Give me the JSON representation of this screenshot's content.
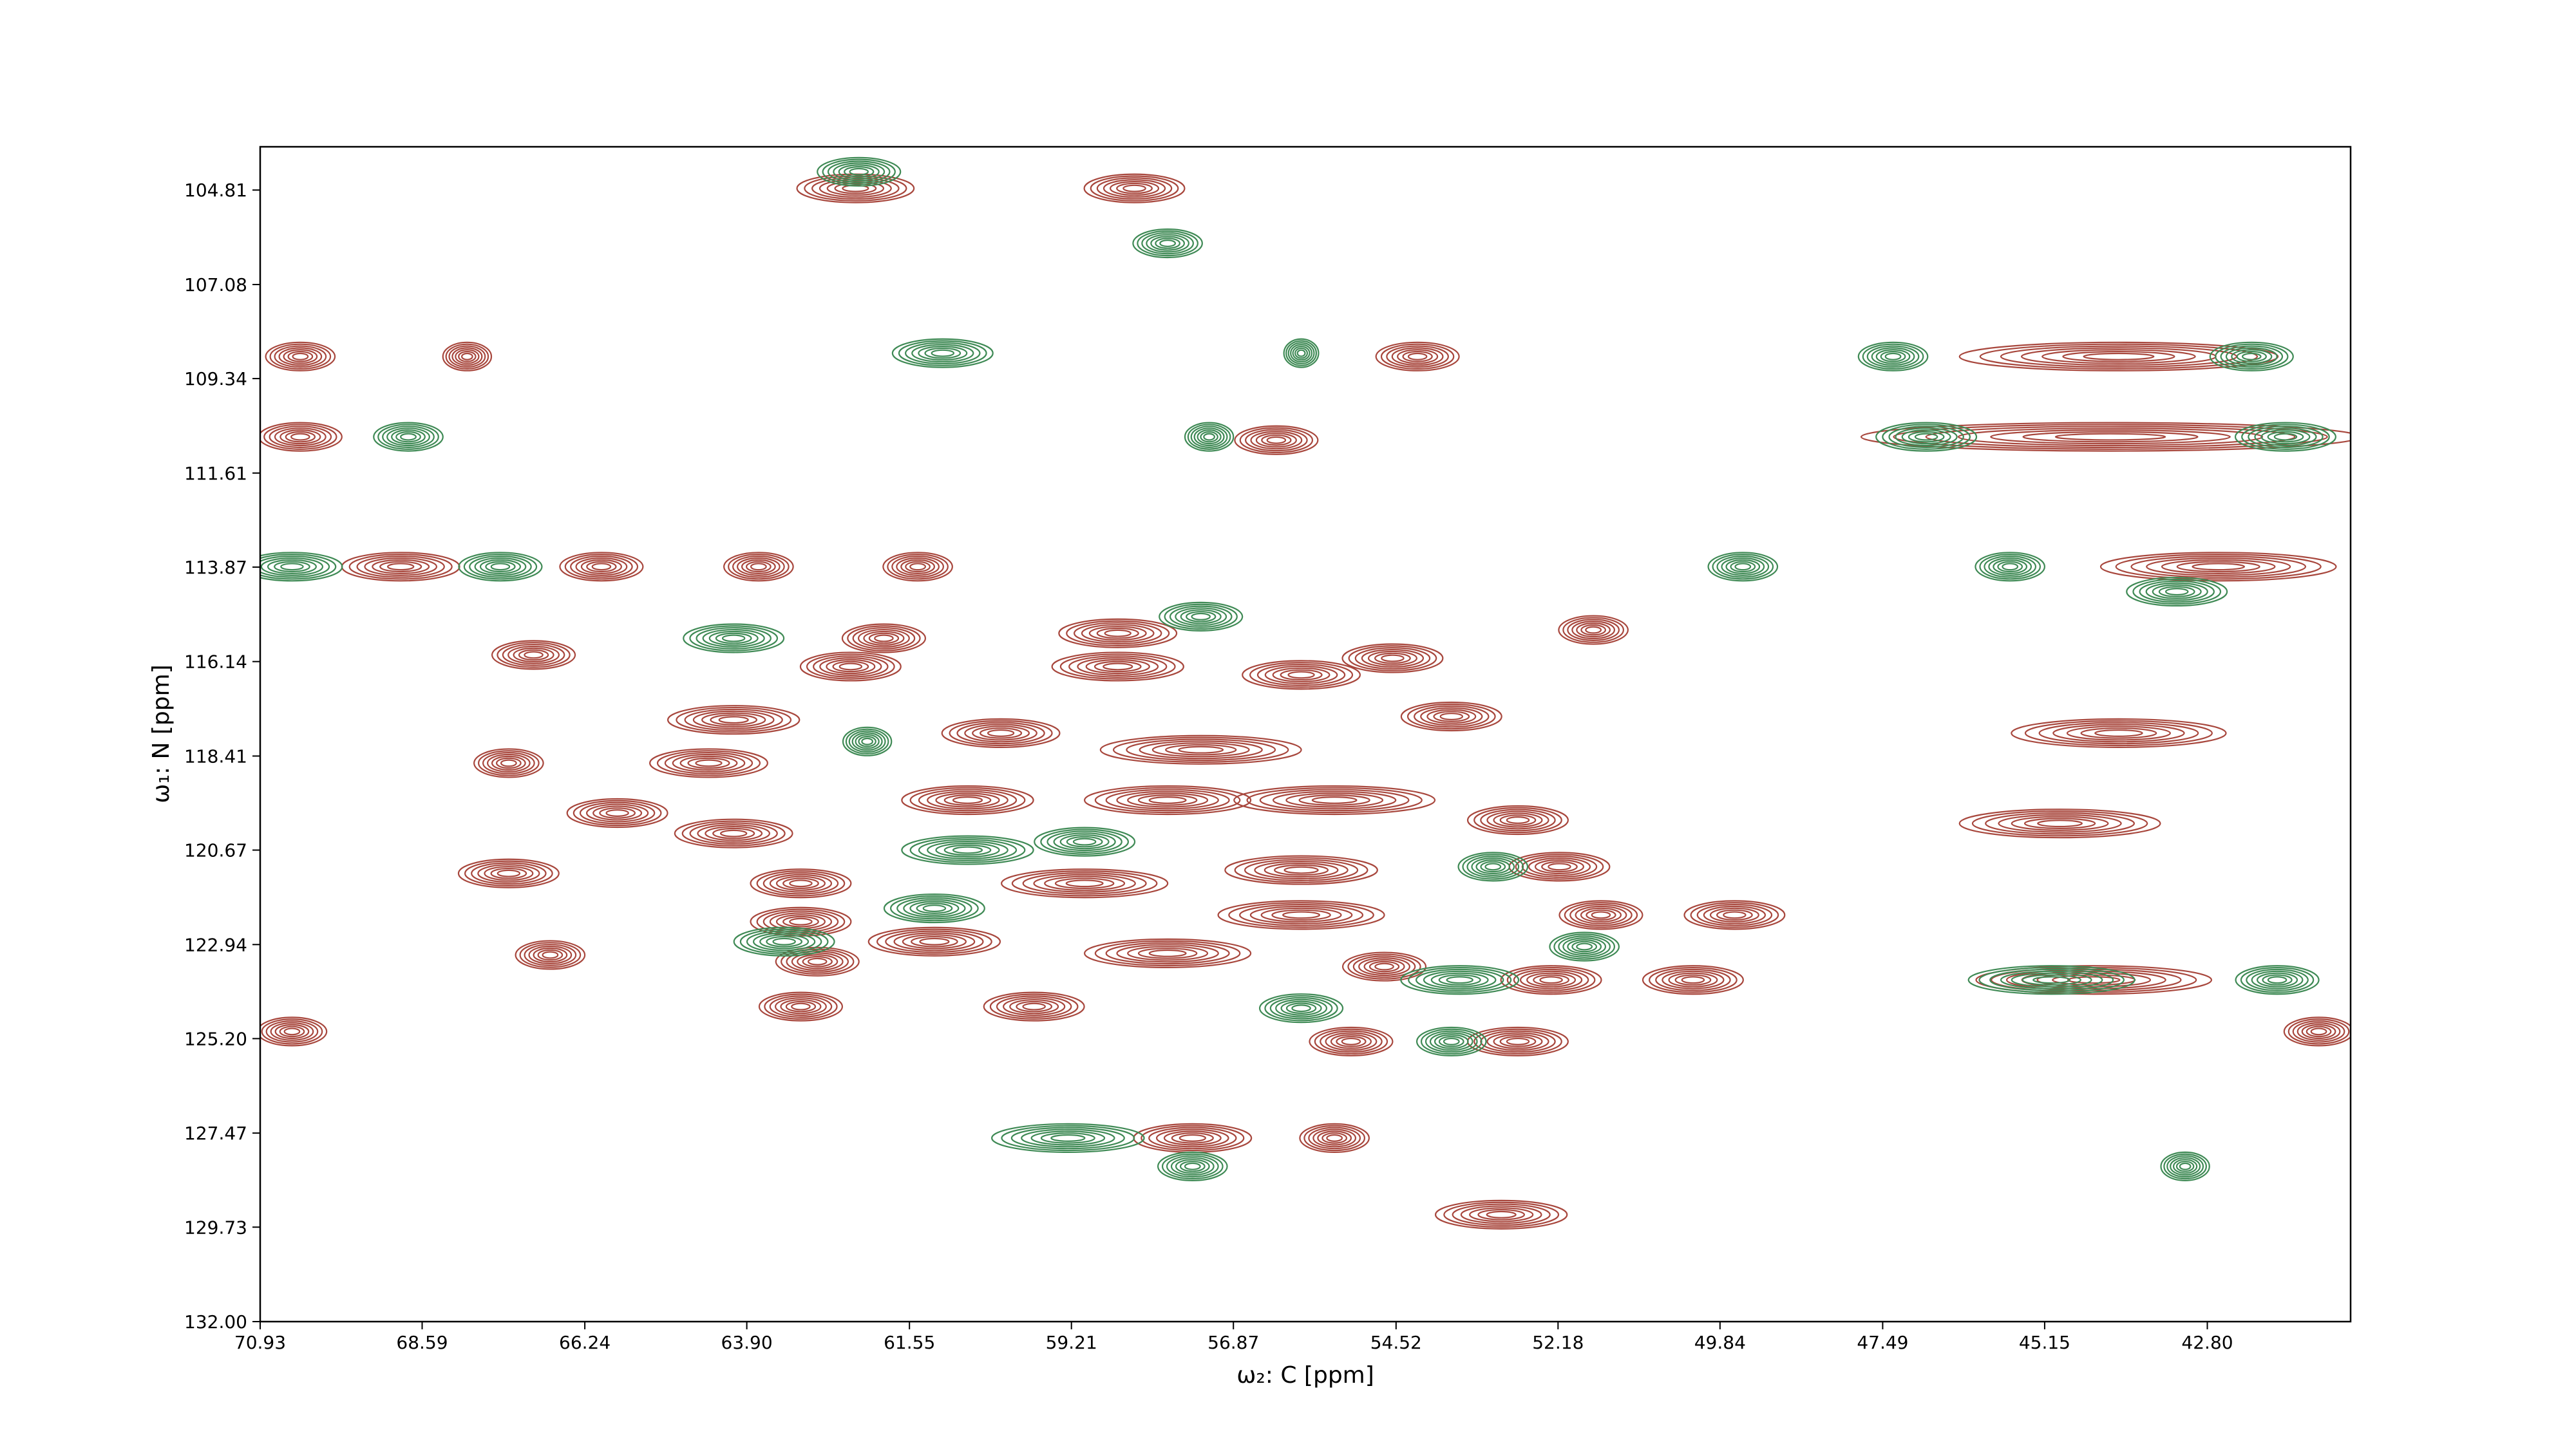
{
  "chart_data": {
    "type": "contour",
    "xlabel": "ω₂: C [ppm]",
    "ylabel": "ω₁: N [ppm]",
    "xlim": [
      70.93,
      40.73
    ],
    "ylim": [
      132,
      103.77
    ],
    "xticks": [
      70.93,
      68.59,
      66.24,
      {
        "value": 63.9,
        "label": "63.90"
      },
      61.55,
      59.21,
      56.87,
      54.52,
      52.18,
      49.84,
      47.49,
      45.15,
      {
        "value": 42.8,
        "label": "42.80"
      }
    ],
    "yticks": [
      104.81,
      107.08,
      109.34,
      111.61,
      113.87,
      116.14,
      118.41,
      120.67,
      122.94,
      {
        "value": 125.2,
        "label": "125.20"
      },
      127.47,
      129.73,
      {
        "value": 132,
        "label": "132.00"
      }
    ],
    "series": [
      {
        "color": "#a8473d",
        "x": [
          62.33,
          58.3,
          54.21,
          44.08,
          70.35,
          56.25,
          44.2,
          42.64,
          68.9,
          66.0,
          63.73,
          61.43,
          66.98,
          61.92,
          62.4,
          58.54,
          58.54,
          55.89,
          54.57,
          51.67,
          64.09,
          60.23,
          67.34,
          64.45,
          57.34,
          53.72,
          44.08,
          65.77,
          64.09,
          60.71,
          57.82,
          55.41,
          52.76,
          44.93,
          67.34,
          63.12,
          59.02,
          55.89,
          52.16,
          49.63,
          51.56,
          55.89,
          63.12,
          61.19,
          57.82,
          54.69,
          52.28,
          50.23,
          44.44,
          62.88,
          63.12,
          59.75,
          55.17,
          52.76,
          70.47,
          41.19,
          57.46,
          55.41,
          53.0,
          66.74,
          67.94,
          70.35
        ],
        "y": [
          104.77,
          104.77,
          108.81,
          108.81,
          110.74,
          110.82,
          110.74,
          113.86,
          113.86,
          113.86,
          113.86,
          113.86,
          115.98,
          115.58,
          116.26,
          115.46,
          116.26,
          116.46,
          116.06,
          115.38,
          117.54,
          117.86,
          118.58,
          118.58,
          118.26,
          117.46,
          117.86,
          119.78,
          120.27,
          119.47,
          119.47,
          119.47,
          119.95,
          120.03,
          121.23,
          121.47,
          121.47,
          121.15,
          121.07,
          122.23,
          122.23,
          122.23,
          122.39,
          122.87,
          123.15,
          123.47,
          123.79,
          123.79,
          123.79,
          123.35,
          124.43,
          124.43,
          125.27,
          125.27,
          125.03,
          125.03,
          127.59,
          127.59,
          129.43,
          123.19,
          108.81,
          108.81
        ],
        "width": [
          1.69,
          1.45,
          1.2,
          4.6,
          1.2,
          1.2,
          7.2,
          3.4,
          1.7,
          1.2,
          1.0,
          1.0,
          1.2,
          1.2,
          1.45,
          1.7,
          1.9,
          1.7,
          1.45,
          1.0,
          1.9,
          1.7,
          1.0,
          1.7,
          2.9,
          1.45,
          3.1,
          1.45,
          1.7,
          1.9,
          2.4,
          2.9,
          1.45,
          2.9,
          1.45,
          1.45,
          2.4,
          2.2,
          1.45,
          1.45,
          1.2,
          2.4,
          1.45,
          1.9,
          2.4,
          1.2,
          1.45,
          1.45,
          3.4,
          1.2,
          1.2,
          1.45,
          1.2,
          1.45,
          1.0,
          1.0,
          1.7,
          1.0,
          1.9,
          1.0,
          0.7,
          1.0
        ]
      },
      {
        "color": "#3f8a55",
        "x": [
          62.28,
          57.82,
          61.07,
          42.16,
          47.34,
          55.89,
          68.79,
          46.86,
          41.67,
          57.22,
          70.47,
          67.46,
          49.51,
          45.65,
          43.24,
          64.09,
          57.34,
          62.16,
          60.71,
          59.02,
          53.12,
          63.36,
          61.19,
          53.6,
          51.8,
          45.05,
          41.79,
          59.26,
          57.46,
          43.12,
          55.89,
          53.72
        ],
        "y": [
          104.37,
          106.09,
          108.73,
          108.81,
          108.81,
          108.73,
          110.74,
          110.74,
          110.74,
          110.74,
          113.86,
          113.86,
          113.86,
          113.86,
          114.46,
          115.58,
          115.06,
          118.06,
          120.67,
          120.47,
          121.07,
          122.87,
          122.07,
          123.79,
          122.99,
          123.79,
          123.79,
          127.59,
          128.27,
          128.27,
          124.47,
          125.27
        ],
        "width": [
          1.2,
          1.0,
          1.45,
          1.2,
          1.0,
          0.5,
          1.0,
          1.45,
          1.45,
          0.7,
          1.45,
          1.2,
          1.0,
          1.0,
          1.45,
          1.45,
          1.2,
          0.7,
          1.9,
          1.45,
          1.0,
          1.45,
          1.45,
          1.7,
          1.0,
          2.4,
          1.2,
          2.2,
          1.0,
          0.7,
          1.2,
          1.0
        ]
      }
    ]
  }
}
